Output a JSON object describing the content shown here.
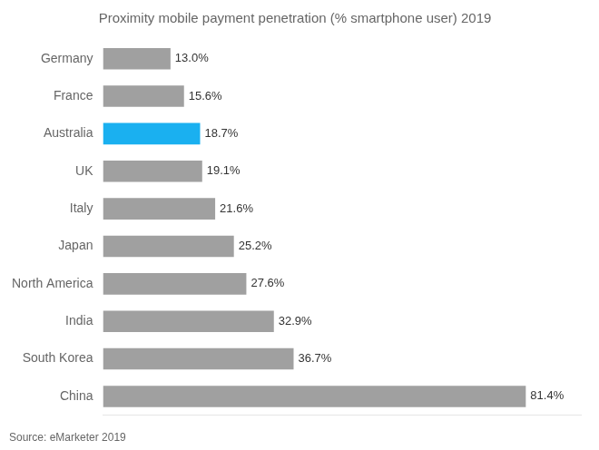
{
  "chart_data": {
    "type": "bar",
    "orientation": "horizontal",
    "title": "Proximity mobile payment penetration (% smartphone user) 2019",
    "annotations": [
      "Source: eMarketer 2019"
    ],
    "categories": [
      "Germany",
      "France",
      "Australia",
      "UK",
      "Italy",
      "Japan",
      "North America",
      "India",
      "South Korea",
      "China"
    ],
    "values": [
      13.0,
      15.6,
      18.7,
      19.1,
      21.6,
      25.2,
      27.6,
      32.9,
      36.7,
      81.4
    ],
    "value_labels": [
      "13.0%",
      "15.6%",
      "18.7%",
      "19.1%",
      "21.6%",
      "25.2%",
      "27.6%",
      "32.9%",
      "36.7%",
      "81.4%"
    ],
    "data_labels": true,
    "colors": [
      "#a0a0a0",
      "#a0a0a0",
      "#1ab0f0",
      "#a0a0a0",
      "#a0a0a0",
      "#a0a0a0",
      "#a0a0a0",
      "#a0a0a0",
      "#a0a0a0",
      "#a0a0a0"
    ],
    "xlim": [
      0,
      92
    ],
    "grid": false,
    "tick_labels": "y"
  }
}
